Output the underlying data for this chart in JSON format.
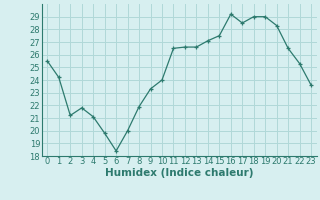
{
  "x": [
    0,
    1,
    2,
    3,
    4,
    5,
    6,
    7,
    8,
    9,
    10,
    11,
    12,
    13,
    14,
    15,
    16,
    17,
    18,
    19,
    20,
    21,
    22,
    23
  ],
  "y": [
    25.5,
    24.2,
    21.2,
    21.8,
    21.1,
    19.8,
    18.4,
    20.0,
    21.9,
    23.3,
    24.0,
    26.5,
    26.6,
    26.6,
    27.1,
    27.5,
    29.2,
    28.5,
    29.0,
    29.0,
    28.3,
    26.5,
    25.3,
    23.6
  ],
  "line_color": "#2d7a6e",
  "marker": "+",
  "bg_color": "#d7eff0",
  "grid_color": "#b0d8d8",
  "xlabel": "Humidex (Indice chaleur)",
  "ylim": [
    18,
    30
  ],
  "yticks": [
    18,
    19,
    20,
    21,
    22,
    23,
    24,
    25,
    26,
    27,
    28,
    29
  ],
  "xticks": [
    0,
    1,
    2,
    3,
    4,
    5,
    6,
    7,
    8,
    9,
    10,
    11,
    12,
    13,
    14,
    15,
    16,
    17,
    18,
    19,
    20,
    21,
    22,
    23
  ],
  "tick_labelsize": 6,
  "xlabel_fontsize": 7.5
}
